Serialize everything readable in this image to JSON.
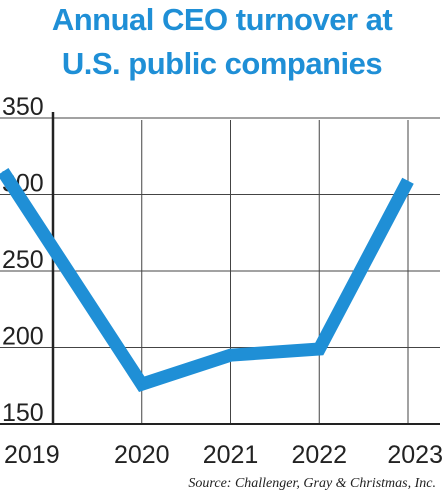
{
  "chart_data": {
    "type": "line",
    "title_lines": [
      "Annual CEO turnover at",
      "U.S. public companies"
    ],
    "x": [
      "2019",
      "2020",
      "2021",
      "2022",
      "2023"
    ],
    "series": [
      {
        "values": [
          315,
          176,
          195,
          199,
          309
        ]
      }
    ],
    "ylim": [
      150,
      350
    ],
    "yticks": [
      150,
      200,
      250,
      300,
      350
    ],
    "grid": true,
    "line_color": "#1f8fd6",
    "source": "Source: Challenger, Gray & Christmas, Inc."
  }
}
